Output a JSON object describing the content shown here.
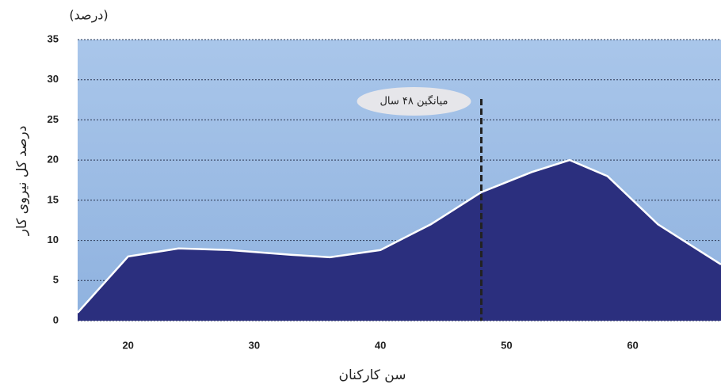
{
  "chart_data": {
    "type": "area",
    "unit_label": "(درصد)",
    "ylabel": "درصد کل نیروی کار",
    "xlabel": "سن کارکنان",
    "x": [
      16,
      20,
      24,
      28,
      33,
      36,
      40,
      44,
      48,
      52,
      55,
      58,
      62,
      67
    ],
    "series": [
      {
        "color": "#2b2f7e",
        "values": [
          1,
          8,
          9,
          8.8,
          8.2,
          7.9,
          8.8,
          12,
          16,
          18.5,
          20,
          18,
          12,
          7
        ]
      }
    ],
    "xlim": [
      16,
      67
    ],
    "xticks": [
      20,
      30,
      40,
      50,
      60
    ],
    "ylim": [
      0,
      35
    ],
    "yticks": [
      0,
      5,
      10,
      15,
      20,
      25,
      30,
      35
    ],
    "grid": true,
    "mean_line": {
      "x": 48,
      "label": "میانگین ۴۸ سال"
    }
  }
}
